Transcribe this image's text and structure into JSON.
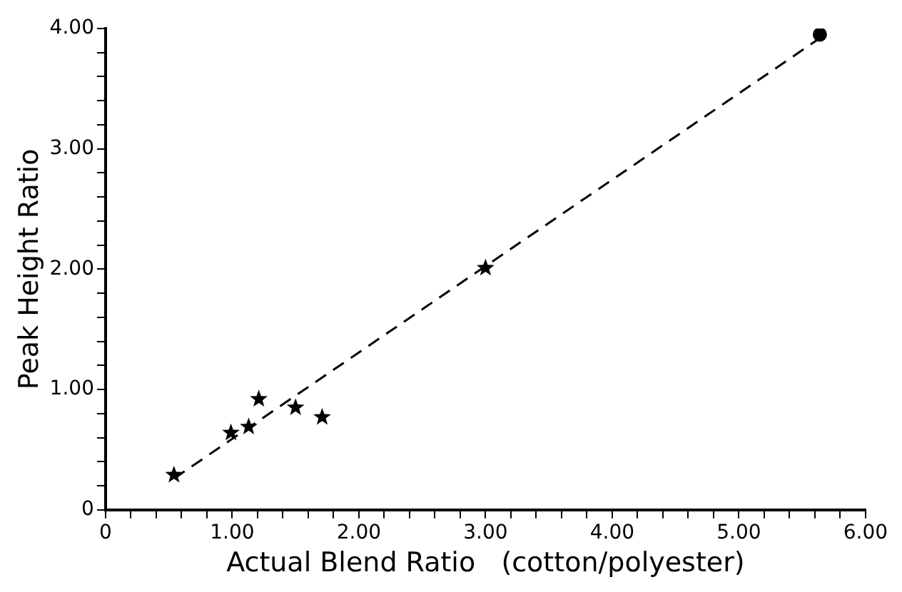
{
  "chart_data": {
    "type": "scatter",
    "xlabel": "Actual Blend Ratio   (cotton/polyester)",
    "ylabel": "Peak Height Ratio",
    "series": [
      {
        "type": "scatter",
        "marker": "star",
        "color": "#000000",
        "x": [
          0.54,
          0.99,
          1.13,
          1.21,
          1.5,
          1.71,
          3.0
        ],
        "values": [
          0.29,
          0.64,
          0.69,
          0.92,
          0.85,
          0.77,
          2.01
        ]
      },
      {
        "type": "scatter",
        "marker": "circle",
        "color": "#000000",
        "x": [
          5.64
        ],
        "values": [
          3.95
        ]
      },
      {
        "type": "line",
        "marker": "none",
        "line_style": "dashed",
        "color": "#000000",
        "x": [
          0.54,
          5.64
        ],
        "values": [
          0.26,
          3.92
        ]
      }
    ],
    "xlim": [
      0,
      6
    ],
    "ylim": [
      0,
      4
    ],
    "xticks": [
      {
        "value": 0,
        "label": "0"
      },
      {
        "value": 0.2,
        "label": null
      },
      {
        "value": 0.4,
        "label": null
      },
      {
        "value": 0.6,
        "label": null
      },
      {
        "value": 0.8,
        "label": null
      },
      {
        "value": 1,
        "label": "1.00"
      },
      {
        "value": 1.2,
        "label": null
      },
      {
        "value": 1.4,
        "label": null
      },
      {
        "value": 1.6,
        "label": null
      },
      {
        "value": 1.8,
        "label": null
      },
      {
        "value": 2,
        "label": "2.00"
      },
      {
        "value": 2.2,
        "label": null
      },
      {
        "value": 2.4,
        "label": null
      },
      {
        "value": 2.6,
        "label": null
      },
      {
        "value": 2.8,
        "label": null
      },
      {
        "value": 3,
        "label": "3.00"
      },
      {
        "value": 3.2,
        "label": null
      },
      {
        "value": 3.4,
        "label": null
      },
      {
        "value": 3.6,
        "label": null
      },
      {
        "value": 3.8,
        "label": null
      },
      {
        "value": 4,
        "label": "4.00"
      },
      {
        "value": 4.2,
        "label": null
      },
      {
        "value": 4.4,
        "label": null
      },
      {
        "value": 4.6,
        "label": null
      },
      {
        "value": 4.8,
        "label": null
      },
      {
        "value": 5,
        "label": "5.00"
      },
      {
        "value": 5.2,
        "label": null
      },
      {
        "value": 5.4,
        "label": null
      },
      {
        "value": 5.6,
        "label": null
      },
      {
        "value": 5.8,
        "label": null
      },
      {
        "value": 6,
        "label": "6.00"
      }
    ],
    "yticks": [
      {
        "value": 0,
        "label": "0"
      },
      {
        "value": 0.2,
        "label": null
      },
      {
        "value": 0.4,
        "label": null
      },
      {
        "value": 0.6,
        "label": null
      },
      {
        "value": 0.8,
        "label": null
      },
      {
        "value": 1,
        "label": "1.00"
      },
      {
        "value": 1.2,
        "label": null
      },
      {
        "value": 1.4,
        "label": null
      },
      {
        "value": 1.6,
        "label": null
      },
      {
        "value": 1.8,
        "label": null
      },
      {
        "value": 2,
        "label": "2.00"
      },
      {
        "value": 2.2,
        "label": null
      },
      {
        "value": 2.4,
        "label": null
      },
      {
        "value": 2.6,
        "label": null
      },
      {
        "value": 2.8,
        "label": null
      },
      {
        "value": 3,
        "label": "3.00"
      },
      {
        "value": 3.2,
        "label": null
      },
      {
        "value": 3.4,
        "label": null
      },
      {
        "value": 3.6,
        "label": null
      },
      {
        "value": 3.8,
        "label": null
      },
      {
        "value": 4,
        "label": "4.00"
      }
    ],
    "grid": false,
    "legend": false
  }
}
